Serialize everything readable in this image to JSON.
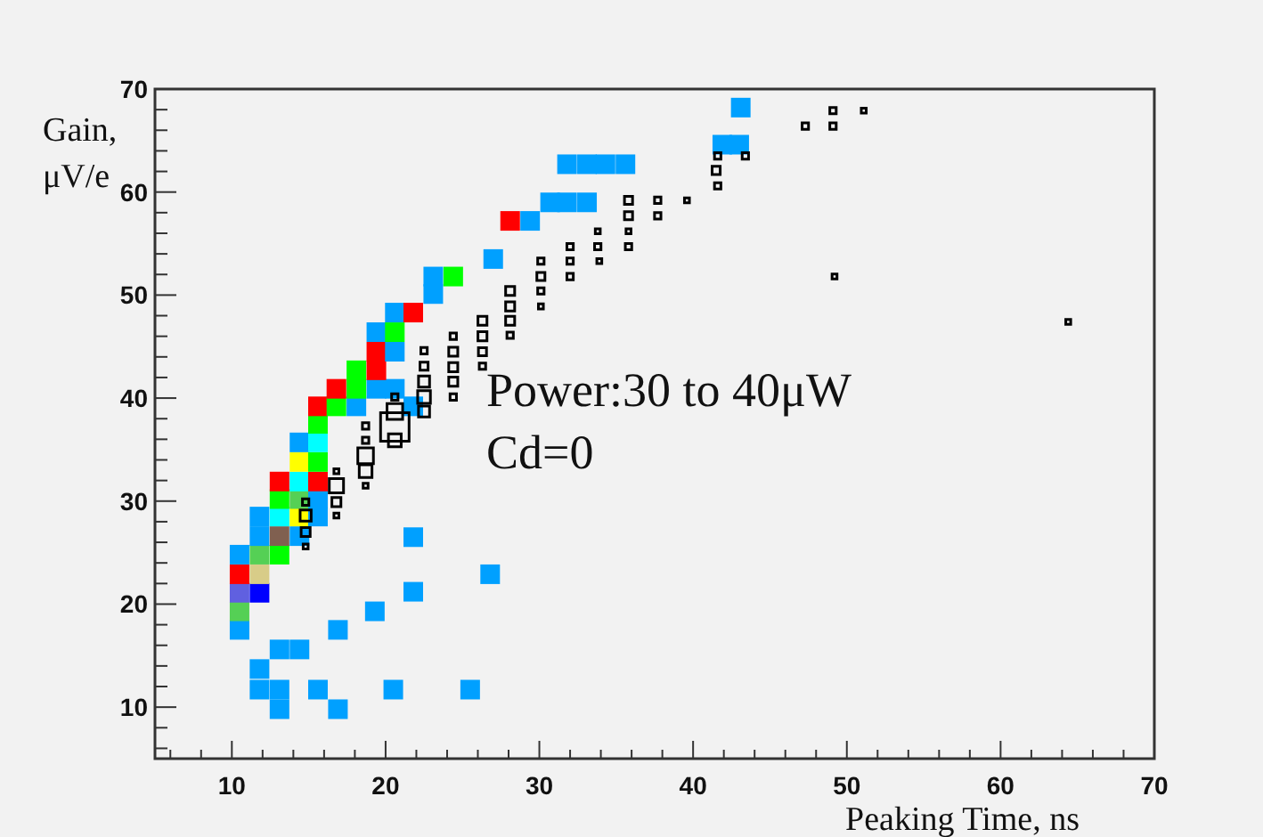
{
  "chart_data": {
    "type": "scatter",
    "xlabel": "Peaking Time, ns",
    "ylabel": "Gain, μV/e",
    "annotations": [
      "Power:30 to 40μW",
      "Cd=0"
    ],
    "xlim": [
      5,
      70
    ],
    "ylim": [
      5,
      70
    ],
    "xticks": [
      {
        "value": 6,
        "label": null
      },
      {
        "value": 8,
        "label": null
      },
      10,
      {
        "value": 12,
        "label": null
      },
      {
        "value": 14,
        "label": null
      },
      {
        "value": 16,
        "label": null
      },
      {
        "value": 18,
        "label": null
      },
      20,
      {
        "value": 22,
        "label": null
      },
      {
        "value": 24,
        "label": null
      },
      {
        "value": 26,
        "label": null
      },
      {
        "value": 28,
        "label": null
      },
      30,
      {
        "value": 32,
        "label": null
      },
      {
        "value": 34,
        "label": null
      },
      {
        "value": 36,
        "label": null
      },
      {
        "value": 38,
        "label": null
      },
      40,
      {
        "value": 42,
        "label": null
      },
      {
        "value": 44,
        "label": null
      },
      {
        "value": 46,
        "label": null
      },
      {
        "value": 48,
        "label": null
      },
      50,
      {
        "value": 52,
        "label": null
      },
      {
        "value": 54,
        "label": null
      },
      {
        "value": 56,
        "label": null
      },
      {
        "value": 58,
        "label": null
      },
      60,
      {
        "value": 62,
        "label": null
      },
      {
        "value": 64,
        "label": null
      },
      {
        "value": 66,
        "label": null
      },
      {
        "value": 68,
        "label": null
      },
      70
    ],
    "yticks": [
      {
        "value": 6,
        "label": null
      },
      {
        "value": 8,
        "label": null
      },
      10,
      {
        "value": 12,
        "label": null
      },
      {
        "value": 14,
        "label": null
      },
      {
        "value": 16,
        "label": null
      },
      {
        "value": 18,
        "label": null
      },
      20,
      {
        "value": 22,
        "label": null
      },
      {
        "value": 24,
        "label": null
      },
      {
        "value": 26,
        "label": null
      },
      {
        "value": 28,
        "label": null
      },
      30,
      {
        "value": 32,
        "label": null
      },
      {
        "value": 34,
        "label": null
      },
      {
        "value": 36,
        "label": null
      },
      {
        "value": 38,
        "label": null
      },
      40,
      {
        "value": 42,
        "label": null
      },
      {
        "value": 44,
        "label": null
      },
      {
        "value": 46,
        "label": null
      },
      {
        "value": 48,
        "label": null
      },
      50,
      {
        "value": 52,
        "label": null
      },
      {
        "value": 54,
        "label": null
      },
      {
        "value": 56,
        "label": null
      },
      {
        "value": 58,
        "label": null
      },
      60,
      {
        "value": 62,
        "label": null
      },
      {
        "value": 64,
        "label": null
      },
      {
        "value": 66,
        "label": null
      },
      {
        "value": 68,
        "label": null
      },
      70
    ],
    "series": [
      {
        "marker": "square",
        "x": [
          10.5,
          16.9,
          19.3,
          21.8,
          26.8,
          21.8,
          13.1,
          14.4,
          11.8,
          11.8,
          13.1,
          15.6,
          20.5,
          25.5,
          13.1,
          16.9,
          10.5,
          10.5,
          11.8,
          10.5,
          11.8,
          10.5,
          11.8,
          13.1,
          11.8,
          13.1,
          14.4,
          11.8,
          13.1,
          14.4,
          15.6,
          13.1,
          14.4,
          15.6,
          13.1,
          14.4,
          15.6,
          14.4,
          15.6,
          14.4,
          15.6,
          15.6,
          15.6,
          16.8,
          18.1,
          21.8,
          16.8,
          18.1,
          19.4,
          20.6,
          18.1,
          19.4,
          19.4,
          20.6,
          19.4,
          20.6,
          20.6,
          21.8,
          23.1,
          23.1,
          24.4,
          27.0,
          28.1,
          29.4,
          30.7,
          31.8,
          33.1,
          31.8,
          33.1,
          34.3,
          35.6,
          41.9,
          43.0,
          43.1
        ],
        "values": [
          17.5,
          17.5,
          19.3,
          21.2,
          22.9,
          26.5,
          15.6,
          15.6,
          13.7,
          11.7,
          11.7,
          11.7,
          11.7,
          11.7,
          9.8,
          9.8,
          19.3,
          21.1,
          21.1,
          22.9,
          22.9,
          24.8,
          24.8,
          24.8,
          26.6,
          26.6,
          26.6,
          28.5,
          28.5,
          28.5,
          28.5,
          30.2,
          30.2,
          30.2,
          31.9,
          31.9,
          31.9,
          33.8,
          33.8,
          35.7,
          35.7,
          37.5,
          39.2,
          39.2,
          39.2,
          39.2,
          40.9,
          40.9,
          40.9,
          40.9,
          42.7,
          42.7,
          44.5,
          44.5,
          46.4,
          46.4,
          48.3,
          48.3,
          50.1,
          51.8,
          51.8,
          53.5,
          57.2,
          57.2,
          59.0,
          59.0,
          59.0,
          62.7,
          62.7,
          62.7,
          62.7,
          64.6,
          64.6,
          68.2
        ],
        "colors": [
          "#00a0ff",
          "#00a0ff",
          "#00a0ff",
          "#00a0ff",
          "#00a0ff",
          "#00a0ff",
          "#00a0ff",
          "#00a0ff",
          "#00a0ff",
          "#00a0ff",
          "#00a0ff",
          "#00a0ff",
          "#00a0ff",
          "#00a0ff",
          "#00a0ff",
          "#00a0ff",
          "#55d055",
          "#6060e0",
          "#0000ff",
          "#ff0000",
          "#d8cc88",
          "#00a0ff",
          "#55d055",
          "#00ff00",
          "#00a0ff",
          "#806050",
          "#00a0ff",
          "#00a0ff",
          "#00ffff",
          "#ffff00",
          "#00a0ff",
          "#00ff00",
          "#55d055",
          "#00a0ff",
          "#ff0000",
          "#00ffff",
          "#ff0000",
          "#ffff00",
          "#00ff00",
          "#00a0ff",
          "#00ffff",
          "#00ff00",
          "#ff0000",
          "#00ff00",
          "#00a0ff",
          "#00a0ff",
          "#ff0000",
          "#00ff00",
          "#00a0ff",
          "#00a0ff",
          "#00ff00",
          "#ff0000",
          "#ff0000",
          "#00a0ff",
          "#00a0ff",
          "#00ff00",
          "#00a0ff",
          "#ff0000",
          "#00a0ff",
          "#00a0ff",
          "#00ff00",
          "#00a0ff",
          "#ff0000",
          "#00a0ff",
          "#00a0ff",
          "#00a0ff",
          "#00a0ff",
          "#00a0ff",
          "#00a0ff",
          "#00a0ff",
          "#00a0ff",
          "#00a0ff",
          "#00a0ff",
          "#00a0ff"
        ]
      },
      {
        "type": "bubble",
        "marker": "square",
        "color": "#000000",
        "x": [
          49.1,
          51.1,
          47.3,
          49.1,
          41.6,
          43.4,
          41.5,
          41.6,
          35.8,
          37.7,
          39.6,
          35.8,
          37.7,
          33.8,
          35.8,
          32.0,
          33.8,
          35.8,
          30.1,
          32.0,
          33.9,
          30.1,
          32.0,
          49.2,
          28.1,
          30.1,
          28.1,
          30.1,
          28.1,
          28.1,
          64.4,
          26.3,
          26.3,
          26.3,
          26.3,
          24.4,
          24.4,
          24.4,
          24.4,
          24.4,
          22.5,
          22.5,
          22.5,
          22.5,
          22.5,
          20.6,
          20.6,
          20.6,
          20.6,
          18.7,
          18.7,
          18.7,
          18.7,
          18.7,
          16.8,
          16.8,
          16.8,
          16.8,
          14.8,
          14.8,
          14.8,
          14.8
        ],
        "values": [
          67.9,
          67.9,
          66.4,
          66.4,
          63.5,
          63.5,
          62.1,
          60.6,
          59.2,
          59.2,
          59.2,
          57.7,
          57.7,
          56.2,
          56.2,
          54.7,
          54.7,
          54.7,
          53.3,
          53.3,
          53.3,
          51.8,
          51.8,
          51.8,
          50.4,
          50.4,
          48.9,
          48.9,
          47.5,
          46.1,
          47.4,
          47.5,
          46.0,
          44.5,
          43.1,
          46.0,
          44.5,
          43.0,
          41.6,
          40.1,
          44.6,
          43.1,
          41.6,
          40.1,
          38.7,
          40.1,
          38.7,
          37.2,
          35.9,
          37.3,
          35.9,
          34.4,
          32.9,
          31.5,
          32.9,
          31.5,
          29.9,
          28.6,
          29.9,
          28.6,
          27.0,
          25.6
        ],
        "sizes": [
          0.05,
          0.03,
          0.05,
          0.05,
          0.05,
          0.05,
          0.08,
          0.05,
          0.08,
          0.05,
          0.03,
          0.08,
          0.05,
          0.03,
          0.03,
          0.05,
          0.05,
          0.05,
          0.05,
          0.05,
          0.03,
          0.08,
          0.05,
          0.03,
          0.1,
          0.05,
          0.1,
          0.03,
          0.1,
          0.05,
          0.03,
          0.1,
          0.1,
          0.08,
          0.05,
          0.05,
          0.1,
          0.1,
          0.1,
          0.05,
          0.05,
          0.08,
          0.15,
          0.2,
          0.15,
          0.05,
          0.3,
          1,
          0.2,
          0.05,
          0.05,
          0.3,
          0.2,
          0.03,
          0.03,
          0.25,
          0.1,
          0.03,
          0.05,
          0.15,
          0.1,
          0.03
        ]
      }
    ]
  }
}
